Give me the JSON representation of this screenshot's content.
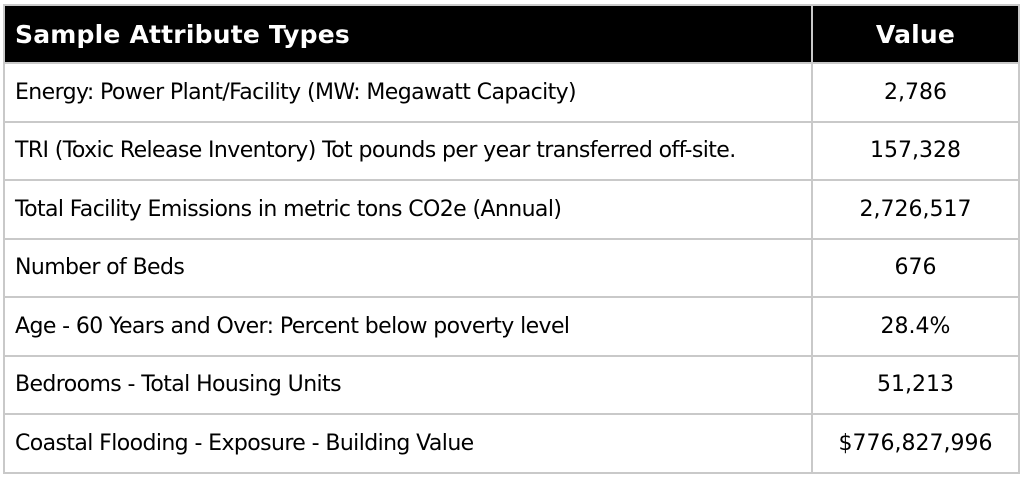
{
  "table": {
    "headers": [
      "Sample Attribute Types",
      "Value"
    ],
    "rows": [
      {
        "attribute": "Energy: Power Plant/Facility (MW: Megawatt Capacity)",
        "value": "2,786"
      },
      {
        "attribute": "TRI (Toxic Release Inventory) Tot pounds per year transferred off-site.",
        "value": "157,328"
      },
      {
        "attribute": "Total Facility Emissions in metric tons CO2e (Annual)",
        "value": "2,726,517"
      },
      {
        "attribute": "Number of Beds",
        "value": "676"
      },
      {
        "attribute": "Age - 60 Years and Over: Percent below poverty level",
        "value": "28.4%"
      },
      {
        "attribute": "Bedrooms - Total Housing Units",
        "value": "51,213"
      },
      {
        "attribute": "Coastal Flooding - Exposure - Building Value",
        "value": "$776,827,996"
      }
    ]
  }
}
